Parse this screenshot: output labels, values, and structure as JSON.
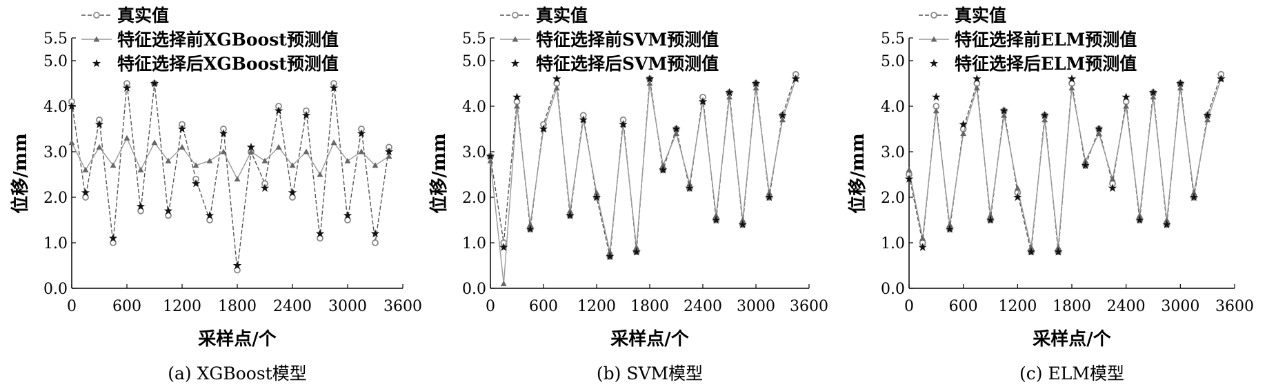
{
  "chart_data": [
    {
      "type": "line",
      "caption": "(a) XGBoost模型",
      "xlabel": "采样点/个",
      "ylabel": "位移/mm",
      "xlim": [
        0,
        3600
      ],
      "ylim": [
        0,
        5.5
      ],
      "xticks": [
        "0",
        "600",
        "1200",
        "1800",
        "2400",
        "3000",
        "3600"
      ],
      "yticks": [
        "0.0",
        "1.0",
        "2.0",
        "3.0",
        "4.0",
        "5.0",
        "5.5"
      ],
      "legend_position": "top-left",
      "x": [
        0,
        150,
        300,
        450,
        600,
        750,
        900,
        1050,
        1200,
        1350,
        1500,
        1650,
        1800,
        1950,
        2100,
        2250,
        2400,
        2550,
        2700,
        2850,
        3000,
        3150,
        3300,
        3450
      ],
      "series": [
        {
          "name": "真实值",
          "marker": "circle",
          "line": "dashed",
          "values": [
            4.1,
            2.0,
            3.7,
            1.0,
            4.5,
            1.7,
            4.5,
            1.6,
            3.6,
            2.4,
            1.5,
            3.5,
            0.4,
            3.0,
            2.3,
            4.0,
            2.0,
            3.9,
            1.1,
            4.5,
            1.5,
            3.5,
            1.0,
            3.1
          ]
        },
        {
          "name": "特征选择前XGBoost预测值",
          "marker": "triangle",
          "line": "solid",
          "values": [
            3.2,
            2.6,
            3.1,
            2.7,
            3.3,
            2.6,
            3.2,
            2.8,
            3.1,
            2.7,
            2.8,
            3.0,
            2.4,
            3.0,
            2.8,
            3.1,
            2.7,
            3.0,
            2.5,
            3.2,
            2.8,
            3.0,
            2.7,
            2.9
          ]
        },
        {
          "name": "特征选择后XGBoost预测值",
          "marker": "star",
          "line": "none",
          "values": [
            4.0,
            2.1,
            3.6,
            1.1,
            4.4,
            1.8,
            4.5,
            1.7,
            3.5,
            2.3,
            1.6,
            3.4,
            0.5,
            3.1,
            2.2,
            3.9,
            2.1,
            3.8,
            1.2,
            4.4,
            1.6,
            3.4,
            1.2,
            3.0
          ]
        }
      ]
    },
    {
      "type": "line",
      "caption": "(b) SVM模型",
      "xlabel": "采样点/个",
      "ylabel": "位移/mm",
      "xlim": [
        0,
        3600
      ],
      "ylim": [
        0,
        5.5
      ],
      "xticks": [
        "0",
        "600",
        "1200",
        "1800",
        "2400",
        "3000",
        "3600"
      ],
      "yticks": [
        "0.0",
        "1.0",
        "2.0",
        "3.0",
        "4.0",
        "5.0",
        "5.5"
      ],
      "legend_position": "top-left",
      "x": [
        0,
        150,
        300,
        450,
        600,
        750,
        900,
        1050,
        1200,
        1350,
        1500,
        1650,
        1800,
        1950,
        2100,
        2250,
        2400,
        2550,
        2700,
        2850,
        3000,
        3150,
        3300,
        3450
      ],
      "series": [
        {
          "name": "真实值",
          "marker": "circle",
          "line": "dashed",
          "values": [
            2.9,
            1.0,
            4.1,
            1.3,
            3.6,
            4.5,
            1.6,
            3.8,
            2.0,
            0.7,
            3.7,
            0.8,
            4.6,
            2.6,
            3.5,
            2.2,
            4.2,
            1.5,
            4.3,
            1.4,
            4.5,
            2.0,
            3.8,
            4.7
          ]
        },
        {
          "name": "特征选择前SVM预测值",
          "marker": "triangle",
          "line": "solid",
          "values": [
            2.8,
            0.1,
            4.0,
            1.4,
            3.5,
            4.4,
            1.7,
            3.7,
            2.1,
            0.8,
            3.6,
            0.9,
            4.5,
            2.7,
            3.4,
            2.3,
            4.1,
            1.6,
            4.2,
            1.5,
            4.4,
            2.1,
            3.7,
            4.6
          ]
        },
        {
          "name": "特征选择后SVM预测值",
          "marker": "star",
          "line": "none",
          "values": [
            2.9,
            0.9,
            4.2,
            1.3,
            3.5,
            4.6,
            1.6,
            3.7,
            2.0,
            0.7,
            3.6,
            0.8,
            4.6,
            2.6,
            3.5,
            2.2,
            4.1,
            1.5,
            4.3,
            1.4,
            4.5,
            2.0,
            3.8,
            4.6
          ]
        }
      ]
    },
    {
      "type": "line",
      "caption": "(c) ELM模型",
      "xlabel": "采样点/个",
      "ylabel": "位移/mm",
      "xlim": [
        0,
        3600
      ],
      "ylim": [
        0,
        5.5
      ],
      "xticks": [
        "0",
        "600",
        "1200",
        "1800",
        "2400",
        "3000",
        "3600"
      ],
      "yticks": [
        "0.0",
        "1.0",
        "2.0",
        "3.0",
        "4.0",
        "5.0",
        "5.5"
      ],
      "legend_position": "top-left",
      "x": [
        0,
        150,
        300,
        450,
        600,
        750,
        900,
        1050,
        1200,
        1350,
        1500,
        1650,
        1800,
        1950,
        2100,
        2250,
        2400,
        2550,
        2700,
        2850,
        3000,
        3150,
        3300,
        3450
      ],
      "series": [
        {
          "name": "真实值",
          "marker": "circle",
          "line": "dashed",
          "values": [
            2.5,
            1.0,
            4.0,
            1.3,
            3.5,
            4.5,
            1.5,
            3.9,
            2.1,
            0.8,
            3.8,
            0.8,
            4.5,
            2.7,
            3.5,
            2.3,
            4.1,
            1.5,
            4.3,
            1.4,
            4.5,
            2.0,
            3.8,
            4.7
          ]
        },
        {
          "name": "特征选择前ELM预测值",
          "marker": "triangle",
          "line": "solid",
          "values": [
            2.6,
            1.1,
            3.9,
            1.4,
            3.4,
            4.4,
            1.6,
            3.8,
            2.2,
            0.9,
            3.7,
            0.9,
            4.4,
            2.8,
            3.4,
            2.4,
            4.0,
            1.6,
            4.2,
            1.5,
            4.4,
            2.1,
            3.7,
            4.6
          ]
        },
        {
          "name": "特征选择后ELM预测值",
          "marker": "star",
          "line": "none",
          "values": [
            2.4,
            0.9,
            4.2,
            1.3,
            3.6,
            4.6,
            1.5,
            3.9,
            2.0,
            0.8,
            3.8,
            0.8,
            4.6,
            2.7,
            3.5,
            2.2,
            4.2,
            1.5,
            4.3,
            1.4,
            4.5,
            2.0,
            3.8,
            4.6
          ]
        }
      ]
    }
  ]
}
